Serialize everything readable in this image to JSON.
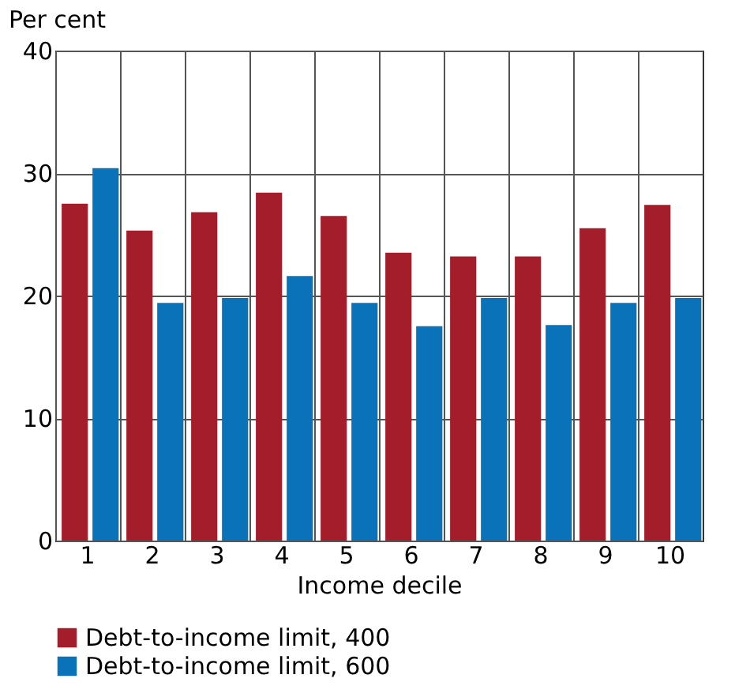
{
  "chart_data": {
    "type": "bar",
    "ylabel": "Per cent",
    "xlabel": "Income decile",
    "categories": [
      "1",
      "2",
      "3",
      "4",
      "5",
      "6",
      "7",
      "8",
      "9",
      "10"
    ],
    "series": [
      {
        "name": "Debt-to-income limit, 400",
        "color": "#a31d2b",
        "values": [
          27.5,
          25.3,
          26.8,
          28.4,
          26.5,
          23.5,
          23.2,
          23.2,
          25.5,
          27.4
        ]
      },
      {
        "name": "Debt-to-income limit, 600",
        "color": "#0a72b9",
        "values": [
          30.4,
          19.4,
          19.8,
          21.6,
          19.4,
          17.5,
          19.8,
          17.6,
          19.4,
          19.8
        ]
      }
    ],
    "ylim": [
      0,
      40
    ],
    "yticks": [
      0,
      10,
      20,
      30,
      40
    ],
    "grid": true,
    "legend": "bottom"
  }
}
